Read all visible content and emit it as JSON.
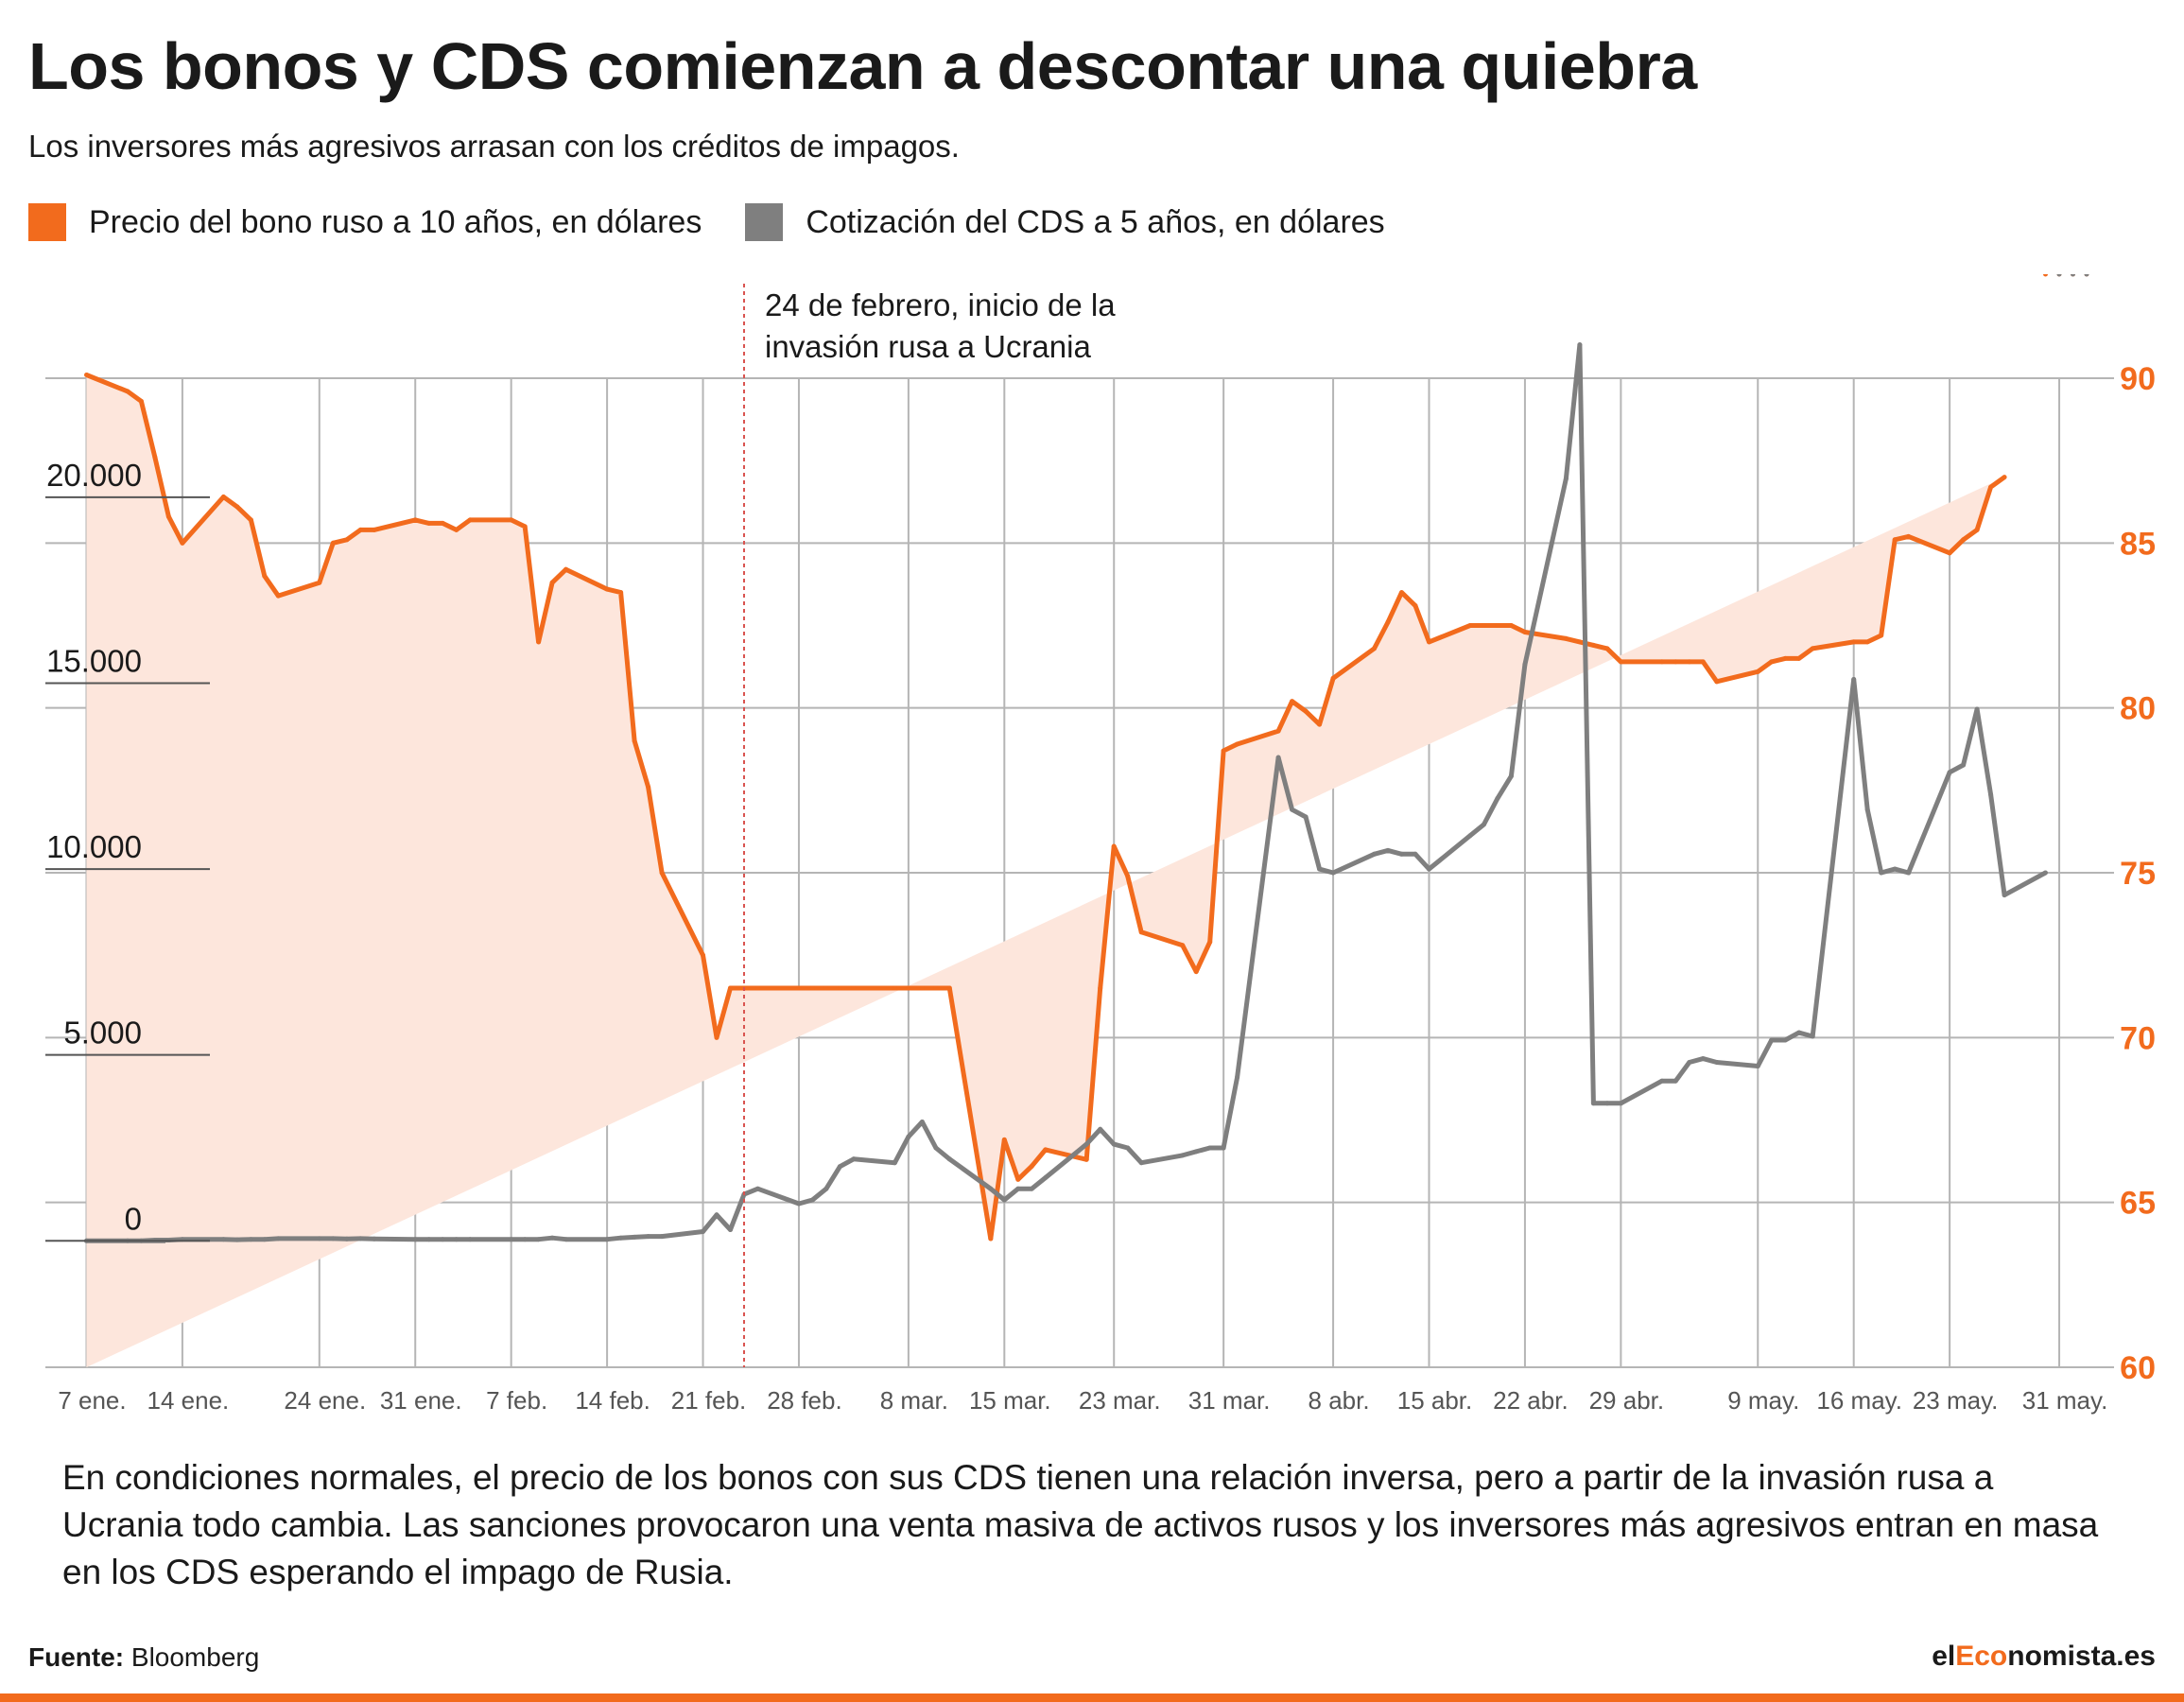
{
  "title": "Los bonos y CDS comienzan a descontar una quiebra",
  "subtitle": "Los inversores más agresivos arrasan con los créditos de impagos.",
  "note": "En condiciones normales, el precio de los bonos con sus CDS tienen una relación inversa, pero a partir de la invasión rusa a Ucrania todo cambia. Las sanciones provocaron una venta masiva de activos rusos y los inversores más agresivos entran en masa en los CDS esperando el impago de Rusia.",
  "source": {
    "label": "Fuente:",
    "value": "Bloomberg"
  },
  "brand": {
    "part1": "el",
    "part2": "Eco",
    "part3": "nomista.es"
  },
  "colors": {
    "bond": "#f26b1d",
    "bond_fill": "#fde6dc",
    "cds": "#7f7f7f",
    "grid": "#b5b5b5",
    "marker": "#d9534f"
  },
  "chart_data": {
    "type": "line",
    "x_dates": [
      "2022-01-07",
      "2022-01-10",
      "2022-01-11",
      "2022-01-12",
      "2022-01-13",
      "2022-01-14",
      "2022-01-17",
      "2022-01-18",
      "2022-01-19",
      "2022-01-20",
      "2022-01-21",
      "2022-01-24",
      "2022-01-25",
      "2022-01-26",
      "2022-01-27",
      "2022-01-28",
      "2022-01-31",
      "2022-02-01",
      "2022-02-02",
      "2022-02-03",
      "2022-02-04",
      "2022-02-07",
      "2022-02-08",
      "2022-02-09",
      "2022-02-10",
      "2022-02-11",
      "2022-02-14",
      "2022-02-15",
      "2022-02-16",
      "2022-02-17",
      "2022-02-18",
      "2022-02-21",
      "2022-02-22",
      "2022-02-23",
      "2022-02-24",
      "2022-02-25",
      "2022-02-28",
      "2022-03-01",
      "2022-03-02",
      "2022-03-03",
      "2022-03-04",
      "2022-03-07",
      "2022-03-08",
      "2022-03-09",
      "2022-03-10",
      "2022-03-11",
      "2022-03-14",
      "2022-03-15",
      "2022-03-16",
      "2022-03-17",
      "2022-03-18",
      "2022-03-21",
      "2022-03-22",
      "2022-03-23",
      "2022-03-24",
      "2022-03-25",
      "2022-03-28",
      "2022-03-29",
      "2022-03-30",
      "2022-03-31",
      "2022-04-01",
      "2022-04-04",
      "2022-04-05",
      "2022-04-06",
      "2022-04-07",
      "2022-04-08",
      "2022-04-11",
      "2022-04-12",
      "2022-04-13",
      "2022-04-14",
      "2022-04-15",
      "2022-04-18",
      "2022-04-19",
      "2022-04-20",
      "2022-04-21",
      "2022-04-22",
      "2022-04-25",
      "2022-04-26",
      "2022-04-27",
      "2022-04-28",
      "2022-04-29",
      "2022-05-02",
      "2022-05-03",
      "2022-05-04",
      "2022-05-05",
      "2022-05-06",
      "2022-05-09",
      "2022-05-10",
      "2022-05-11",
      "2022-05-12",
      "2022-05-13",
      "2022-05-16",
      "2022-05-17",
      "2022-05-18",
      "2022-05-19",
      "2022-05-20",
      "2022-05-23",
      "2022-05-24",
      "2022-05-25",
      "2022-05-26",
      "2022-05-27",
      "2022-05-30",
      "2022-05-31",
      "2022-06-01",
      "2022-06-02"
    ],
    "series": [
      {
        "name": "Precio del bono ruso a 10 años, en dólares",
        "axis": "right",
        "values": [
          90.1,
          89.6,
          89.3,
          87.6,
          85.8,
          85.0,
          86.4,
          86.1,
          85.7,
          84.0,
          83.4,
          83.8,
          85.0,
          85.1,
          85.4,
          85.4,
          85.7,
          85.6,
          85.6,
          85.4,
          85.7,
          85.7,
          85.5,
          82.0,
          83.8,
          84.2,
          83.6,
          83.5,
          79.0,
          77.6,
          75.0,
          72.5,
          70.0,
          71.5,
          71.5,
          71.5,
          71.5,
          71.5,
          71.5,
          71.5,
          71.5,
          71.5,
          71.5,
          71.5,
          71.5,
          71.5,
          63.9,
          66.9,
          65.7,
          66.1,
          66.6,
          66.3,
          71.5,
          75.8,
          74.9,
          73.2,
          72.8,
          72.0,
          72.9,
          78.7,
          78.9,
          79.3,
          80.2,
          79.9,
          79.5,
          80.9,
          81.8,
          82.6,
          83.5,
          83.1,
          82.0,
          82.5,
          82.5,
          82.5,
          82.5,
          82.3,
          82.1,
          82.0,
          81.9,
          81.8,
          81.4,
          81.4,
          81.4,
          81.4,
          81.4,
          80.8,
          81.1,
          81.4,
          81.5,
          81.5,
          81.8,
          82.0,
          82.0,
          82.2,
          85.1,
          85.2,
          84.7,
          85.1,
          85.4,
          86.7,
          87.0
        ]
      },
      {
        "name": "Cotización del CDS a 5 años, en dólares",
        "axis": "left",
        "values": [
          0,
          0,
          0,
          20,
          20,
          40,
          40,
          30,
          40,
          40,
          60,
          60,
          60,
          50,
          60,
          50,
          40,
          40,
          40,
          40,
          40,
          40,
          40,
          40,
          80,
          40,
          40,
          80,
          100,
          120,
          120,
          250,
          700,
          300,
          1250,
          1400,
          1000,
          1100,
          1400,
          2000,
          2200,
          2100,
          2800,
          3200,
          2500,
          2200,
          1400,
          1100,
          1400,
          1400,
          1700,
          2600,
          3000,
          2600,
          2500,
          2100,
          2300,
          2400,
          2500,
          2500,
          4400,
          13000,
          11600,
          11400,
          10000,
          9900,
          10400,
          10500,
          10400,
          10400,
          10000,
          10900,
          11200,
          11900,
          12500,
          15500,
          20500,
          24100,
          3700,
          3700,
          3700,
          4300,
          4300,
          4800,
          4900,
          4800,
          4700,
          5400,
          5400,
          5600,
          5500,
          15100,
          11600,
          9900,
          10000,
          9900,
          12600,
          12800,
          14300,
          12000,
          9300,
          9900
        ]
      }
    ],
    "left_axis": {
      "ylim": [
        -3400,
        23200
      ],
      "ticks": [
        0,
        5000,
        10000,
        15000,
        20000
      ],
      "tick_labels": [
        "0",
        "5.000",
        "10.000",
        "15.000",
        "20.000"
      ]
    },
    "right_axis": {
      "ylim": [
        60,
        90
      ],
      "ticks": [
        60,
        65,
        70,
        75,
        80,
        85,
        90
      ],
      "tick_labels": [
        "60",
        "65",
        "70",
        "75",
        "80",
        "85",
        "90"
      ]
    },
    "x_ticks": [
      {
        "date": "2022-01-07",
        "label": "7 ene."
      },
      {
        "date": "2022-01-14",
        "label": "14 ene."
      },
      {
        "date": "2022-01-24",
        "label": "24 ene."
      },
      {
        "date": "2022-01-31",
        "label": "31 ene."
      },
      {
        "date": "2022-02-07",
        "label": "7 feb."
      },
      {
        "date": "2022-02-14",
        "label": "14 feb."
      },
      {
        "date": "2022-02-21",
        "label": "21 feb."
      },
      {
        "date": "2022-02-28",
        "label": "28 feb."
      },
      {
        "date": "2022-03-08",
        "label": "8 mar."
      },
      {
        "date": "2022-03-15",
        "label": "15 mar."
      },
      {
        "date": "2022-03-23",
        "label": "23 mar."
      },
      {
        "date": "2022-03-31",
        "label": "31 mar."
      },
      {
        "date": "2022-04-08",
        "label": "8 abr."
      },
      {
        "date": "2022-04-15",
        "label": "15 abr."
      },
      {
        "date": "2022-04-22",
        "label": "22 abr."
      },
      {
        "date": "2022-04-29",
        "label": "29 abr."
      },
      {
        "date": "2022-05-09",
        "label": "9 may."
      },
      {
        "date": "2022-05-16",
        "label": "16 may."
      },
      {
        "date": "2022-05-23",
        "label": "23 may."
      },
      {
        "date": "2022-05-31",
        "label": "31 may."
      }
    ],
    "annotation": {
      "date": "2022-02-24",
      "lines": [
        "24 de febrero, inicio de la",
        "invasión rusa a Ucrania"
      ]
    },
    "grid": true,
    "legend_position": "top-left"
  }
}
